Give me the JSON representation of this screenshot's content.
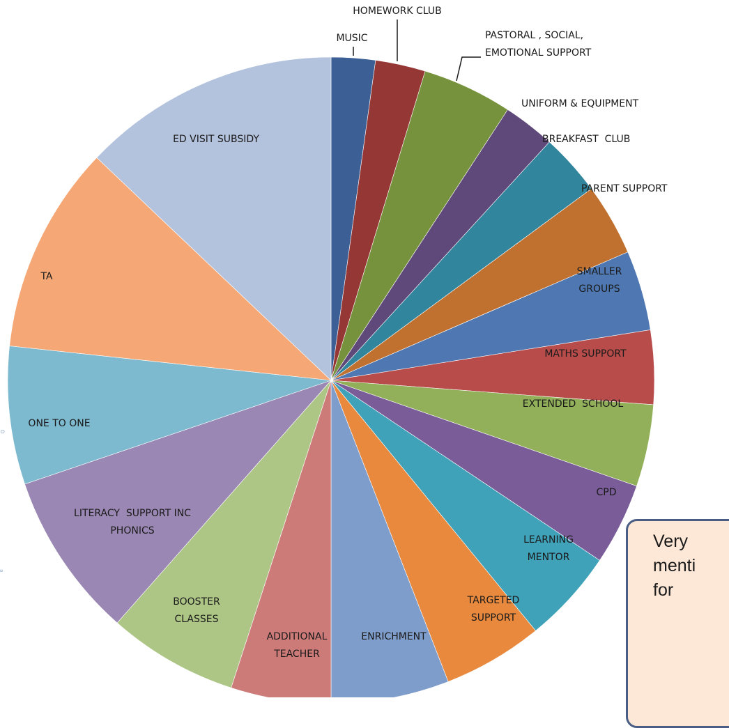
{
  "chart_data": {
    "type": "pie",
    "start_angle_deg": 0,
    "direction": "clockwise",
    "slices": [
      {
        "label": "MUSIC",
        "value": 2.2,
        "color": "#3c6095"
      },
      {
        "label": "HOMEWORK CLUB",
        "value": 2.5,
        "color": "#953735"
      },
      {
        "label": "PASTORAL , SOCIAL,\nEMOTIONAL SUPPORT",
        "value": 4.5,
        "color": "#76923c"
      },
      {
        "label": "UNIFORM & EQUIPMENT",
        "value": 2.6,
        "color": "#5f497a"
      },
      {
        "label": "BREAKFAST  CLUB",
        "value": 3.1,
        "color": "#31859c"
      },
      {
        "label": "PARENT SUPPORT",
        "value": 3.6,
        "color": "#c0712f"
      },
      {
        "label": "SMALLER\nGROUPS",
        "value": 4.0,
        "color": "#4f78b2"
      },
      {
        "label": "MATHS SUPPORT",
        "value": 3.7,
        "color": "#b84c4a"
      },
      {
        "label": "EXTENDED  SCHOOL",
        "value": 4.1,
        "color": "#92b05a"
      },
      {
        "label": "CPD",
        "value": 4.1,
        "color": "#7a5c98"
      },
      {
        "label": "LEARNING\nMENTOR",
        "value": 4.7,
        "color": "#3fa2b9"
      },
      {
        "label": "TARGETED\nSUPPORT",
        "value": 5.0,
        "color": "#e8893d"
      },
      {
        "label": "ENRICHMENT",
        "value": 5.9,
        "color": "#7f9dcb"
      },
      {
        "label": "ADDITIONAL\nTEACHER",
        "value": 5.0,
        "color": "#cd7b79"
      },
      {
        "label": "BOOSTER\nCLASSES",
        "value": 6.5,
        "color": "#adc686"
      },
      {
        "label": "LITERACY  SUPPORT INC\nPHONICS",
        "value": 8.3,
        "color": "#9a87b3"
      },
      {
        "label": "ONE TO ONE",
        "value": 6.9,
        "color": "#7dbacf"
      },
      {
        "label": "TA",
        "value": 10.4,
        "color": "#f5a876"
      },
      {
        "label": "ED VISIT SUBSIDY",
        "value": 12.9,
        "color": "#b4c3dd"
      }
    ]
  },
  "callout": {
    "text": "Very\nmenti\nfor"
  }
}
